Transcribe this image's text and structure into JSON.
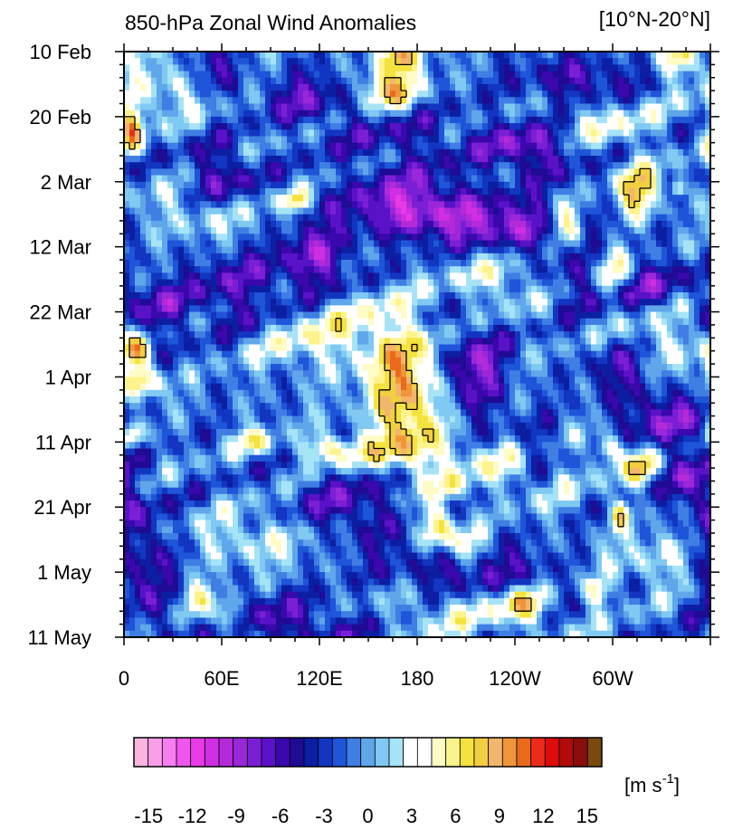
{
  "chart_data": {
    "type": "heatmap",
    "title": "850-hPa Zonal Wind Anomalies",
    "region_label": "[10°N-20°N]",
    "x_ticks": [
      "0",
      "60E",
      "120E",
      "180",
      "120W",
      "60W"
    ],
    "x_tick_lon": [
      0,
      60,
      120,
      180,
      240,
      300
    ],
    "xlim": [
      0,
      360
    ],
    "y_ticks": [
      "10 Feb",
      "20 Feb",
      "2 Mar",
      "12 Mar",
      "22 Mar",
      "1 Apr",
      "11 Apr",
      "21 Apr",
      "1 May",
      "11 May"
    ],
    "y_tick_day": [
      0,
      10,
      20,
      30,
      40,
      50,
      60,
      70,
      80,
      90
    ],
    "ylim_days": [
      0,
      90
    ],
    "y_reversed": true,
    "colorbar": {
      "unit_main": "[m s",
      "unit_sup": "-1",
      "unit_close": "]",
      "tick_labels": [
        "-15",
        "-12",
        "-9",
        "-6",
        "-3",
        "0",
        "3",
        "6",
        "9",
        "12",
        "15"
      ],
      "tick_values": [
        -15,
        -12,
        -9,
        -6,
        -3,
        0,
        3,
        6,
        9,
        12,
        15
      ],
      "range": [
        -16,
        16
      ],
      "step": 1,
      "colors": [
        "#fbb4e0",
        "#f99ee9",
        "#f67ef0",
        "#f055f0",
        "#e83ae6",
        "#cf2ee3",
        "#b42ad9",
        "#9a27d8",
        "#7b1fd6",
        "#5a12c9",
        "#3a08ad",
        "#1f0b94",
        "#0c1fa3",
        "#1236c1",
        "#1e55d9",
        "#3f7fe3",
        "#5fa6ea",
        "#7fc9f2",
        "#a7e3f7",
        "#ffffff",
        "#ffffff",
        "#fffbc4",
        "#fdf38c",
        "#f4e23e",
        "#f1cf41",
        "#f2b56c",
        "#ef963a",
        "#ea6a1c",
        "#ee2b18",
        "#dd0d0d",
        "#b30a0a",
        "#8a0c0c",
        "#7a4a0c",
        "#f77da0",
        "#fba6bb",
        "#fdc8d2",
        "#fee2e7",
        "#fff0f3"
      ]
    },
    "contour_level": 8,
    "contour_color": "#000000",
    "features": [
      {
        "lon": 172,
        "day": 53,
        "dlon": 16,
        "dday": 7,
        "angle": -30,
        "amp": 11
      },
      {
        "lon": 165,
        "day": 6,
        "dlon": 14,
        "dday": 2.5,
        "angle": 10,
        "amp": 9
      },
      {
        "lon": 168,
        "day": 0.5,
        "dlon": 10,
        "dday": 2,
        "angle": 0,
        "amp": 9
      },
      {
        "lon": 315,
        "day": 21.5,
        "dlon": 9,
        "dday": 3,
        "angle": 20,
        "amp": 10
      },
      {
        "lon": 272,
        "day": 26.5,
        "dlon": 8,
        "dday": 2.5,
        "angle": 0,
        "amp": 9
      },
      {
        "lon": 300,
        "day": 34,
        "dlon": 8,
        "dday": 3,
        "angle": 0,
        "amp": 9
      },
      {
        "lon": 192,
        "day": 73,
        "dlon": 7,
        "dday": 2.5,
        "angle": 0,
        "amp": 9
      },
      {
        "lon": 298,
        "day": 61,
        "dlon": 6,
        "dday": 1.5,
        "angle": 0,
        "amp": 8
      },
      {
        "lon": 318,
        "day": 64,
        "dlon": 7,
        "dday": 2,
        "angle": 0,
        "amp": 8
      },
      {
        "lon": 305,
        "day": 71,
        "dlon": 4,
        "dday": 1.5,
        "angle": 0,
        "amp": 8
      },
      {
        "lon": 5,
        "day": 12,
        "dlon": 5,
        "dday": 3,
        "angle": 0,
        "amp": 9
      },
      {
        "lon": 10,
        "day": 50.5,
        "dlon": 8,
        "dday": 2,
        "angle": 0,
        "amp": 9
      },
      {
        "lon": 8,
        "day": 46,
        "dlon": 6,
        "dday": 1.5,
        "angle": 0,
        "amp": 8
      },
      {
        "lon": 6,
        "day": 59,
        "dlon": 5,
        "dday": 1.5,
        "angle": 0,
        "amp": 8
      },
      {
        "lon": 64,
        "day": 87.5,
        "dlon": 6,
        "dday": 2,
        "angle": 0,
        "amp": 9
      },
      {
        "lon": 340,
        "day": 0.5,
        "dlon": 8,
        "dday": 2,
        "angle": 0,
        "amp": 7
      },
      {
        "lon": 340,
        "day": 21,
        "dlon": 3,
        "dday": 1,
        "angle": 0,
        "amp": 8
      },
      {
        "lon": 210,
        "day": 76,
        "dlon": 8,
        "dday": 2,
        "angle": 0,
        "amp": 7
      },
      {
        "lon": 245,
        "day": 85,
        "dlon": 10,
        "dday": 2,
        "angle": 0,
        "amp": 7
      },
      {
        "lon": 290,
        "day": 83,
        "dlon": 6,
        "dday": 1.5,
        "angle": 0,
        "amp": 7
      },
      {
        "lon": 125,
        "day": 61,
        "dlon": 10,
        "dday": 1.5,
        "angle": 0,
        "amp": 7
      },
      {
        "lon": 80,
        "day": 60,
        "dlon": 8,
        "dday": 1.5,
        "angle": 0,
        "amp": 6
      },
      {
        "lon": 105,
        "day": 23,
        "dlon": 6,
        "dday": 1.2,
        "angle": 0,
        "amp": 8
      },
      {
        "lon": 200,
        "day": 67,
        "dlon": 6,
        "dday": 1.5,
        "angle": 0,
        "amp": 6
      },
      {
        "lon": 45,
        "day": 84,
        "dlon": 8,
        "dday": 2,
        "angle": 0,
        "amp": 6
      },
      {
        "lon": 230,
        "day": 35,
        "dlon": 20,
        "dday": 3,
        "angle": 15,
        "amp": 5
      },
      {
        "lon": 55,
        "day": 25,
        "dlon": 25,
        "dday": 3,
        "angle": 0,
        "amp": 5
      },
      {
        "lon": 140,
        "day": 42,
        "dlon": 30,
        "dday": 4,
        "angle": 0,
        "amp": 4
      },
      {
        "lon": 180,
        "day": 62,
        "dlon": 40,
        "dday": 2,
        "angle": 0,
        "amp": 4
      },
      {
        "lon": 80,
        "day": 75,
        "dlon": 30,
        "dday": 3,
        "angle": 0,
        "amp": 4
      },
      {
        "lon": 250,
        "day": 65,
        "dlon": 25,
        "dday": 3,
        "angle": 0,
        "amp": 4
      },
      {
        "lon": 290,
        "day": 10,
        "dlon": 25,
        "dday": 3,
        "angle": 0,
        "amp": 5
      },
      {
        "lon": 200,
        "day": 86,
        "dlon": 40,
        "dday": 3,
        "angle": 0,
        "amp": 4
      },
      {
        "lon": 330,
        "day": 45,
        "dlon": 30,
        "dday": 4,
        "angle": 0,
        "amp": 4
      },
      {
        "lon": 30,
        "day": 5,
        "dlon": 30,
        "dday": 4,
        "angle": 0,
        "amp": 4
      },
      {
        "lon": 180,
        "day": 16,
        "dlon": 30,
        "dday": 3,
        "angle": 0,
        "amp": 4
      },
      {
        "lon": 330,
        "day": 78,
        "dlon": 25,
        "dday": 3,
        "angle": 0,
        "amp": 4
      },
      {
        "lon": 100,
        "day": 45,
        "dlon": 30,
        "dday": 3,
        "angle": 0,
        "amp": 3
      },
      {
        "lon": 175,
        "day": 15,
        "dlon": 30,
        "dday": 4,
        "angle": -10,
        "amp": -7
      },
      {
        "lon": 175,
        "day": 24,
        "dlon": 28,
        "dday": 3,
        "angle": -20,
        "amp": -8
      },
      {
        "lon": 118,
        "day": 32,
        "dlon": 16,
        "dday": 4,
        "angle": -20,
        "amp": -7
      },
      {
        "lon": 240,
        "day": 27,
        "dlon": 35,
        "dday": 3,
        "angle": -30,
        "amp": -7
      },
      {
        "lon": 305,
        "day": 36,
        "dlon": 30,
        "dday": 3,
        "angle": 10,
        "amp": -6
      },
      {
        "lon": 55,
        "day": 3,
        "dlon": 10,
        "dday": 3,
        "angle": 0,
        "amp": -7
      },
      {
        "lon": 60,
        "day": 20,
        "dlon": 15,
        "dday": 4,
        "angle": 20,
        "amp": -6
      },
      {
        "lon": 70,
        "day": 37,
        "dlon": 20,
        "dday": 5,
        "angle": 0,
        "amp": -5
      },
      {
        "lon": 215,
        "day": 49,
        "dlon": 14,
        "dday": 5,
        "angle": 0,
        "amp": -7
      },
      {
        "lon": 330,
        "day": 56,
        "dlon": 20,
        "dday": 3,
        "angle": 0,
        "amp": -6
      },
      {
        "lon": 250,
        "day": 15,
        "dlon": 20,
        "dday": 3,
        "angle": 0,
        "amp": -7
      },
      {
        "lon": 280,
        "day": 5,
        "dlon": 25,
        "dday": 3,
        "angle": 0,
        "amp": -6
      },
      {
        "lon": 10,
        "day": 78,
        "dlon": 15,
        "dday": 6,
        "angle": 0,
        "amp": -6
      },
      {
        "lon": 20,
        "day": 40,
        "dlon": 15,
        "dday": 4,
        "angle": 0,
        "amp": -5
      },
      {
        "lon": 140,
        "day": 70,
        "dlon": 25,
        "dday": 4,
        "angle": 0,
        "amp": -5
      },
      {
        "lon": 100,
        "day": 88,
        "dlon": 40,
        "dday": 3,
        "angle": 0,
        "amp": -5
      },
      {
        "lon": 350,
        "day": 66,
        "dlon": 12,
        "dday": 4,
        "angle": 0,
        "amp": -6
      },
      {
        "lon": 210,
        "day": 80,
        "dlon": 40,
        "dday": 3,
        "angle": 0,
        "amp": -5
      },
      {
        "lon": 110,
        "day": 7,
        "dlon": 20,
        "dday": 3,
        "angle": 0,
        "amp": -5
      },
      {
        "lon": 305,
        "day": 48,
        "dlon": 15,
        "dday": 3,
        "angle": 0,
        "amp": -6
      },
      {
        "lon": 255,
        "day": 62,
        "dlon": 10,
        "dday": 3,
        "angle": 0,
        "amp": -5
      }
    ]
  }
}
